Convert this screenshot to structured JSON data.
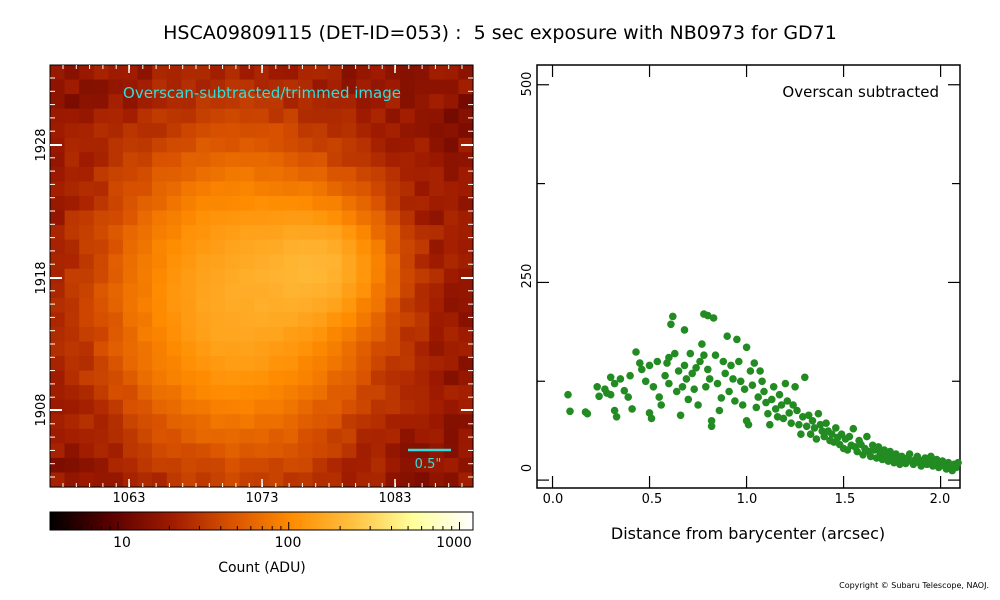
{
  "title": "HSCA09809115 (DET-ID=053) :  5 sec exposure with NB0973 for GD71",
  "copyright": "Copyright © Subaru Telescope, NAOJ.",
  "image_panel": {
    "label": "Overscan-subtracted/trimmed image",
    "scale_bar_label": "0.5\"",
    "x_ticks": [
      "1063",
      "1073",
      "1083"
    ],
    "y_ticks": [
      "1928",
      "1918",
      "1908"
    ],
    "colorbar_ticks": [
      "10",
      "100",
      "1000"
    ],
    "colorbar_label": "Count (ADU)",
    "colorbar_scale": "log",
    "colorbar_range": [
      4,
      1200
    ],
    "colormap": [
      "#000000",
      "#5a0000",
      "#9e1a00",
      "#d85200",
      "#ff8c00",
      "#ffc040",
      "#ffff9a",
      "#ffffff"
    ],
    "label_color": "#33dddd"
  },
  "chart_data": {
    "type": "scatter",
    "label": "Overscan subtracted",
    "xlabel": "Distance from barycenter (arcsec)",
    "ylabel": "",
    "xlim": [
      -0.08,
      2.1
    ],
    "ylim": [
      -10,
      525
    ],
    "x_ticks": [
      "0.0",
      "0.5",
      "1.0",
      "1.5",
      "2.0"
    ],
    "y_ticks": [
      "0",
      "250",
      "500"
    ],
    "marker_color": "#228b22",
    "points": [
      [
        0.08,
        108
      ],
      [
        0.09,
        87
      ],
      [
        0.17,
        86
      ],
      [
        0.18,
        84
      ],
      [
        0.23,
        118
      ],
      [
        0.24,
        106
      ],
      [
        0.27,
        115
      ],
      [
        0.28,
        110
      ],
      [
        0.3,
        108
      ],
      [
        0.3,
        130
      ],
      [
        0.32,
        122
      ],
      [
        0.32,
        88
      ],
      [
        0.33,
        80
      ],
      [
        0.35,
        128
      ],
      [
        0.37,
        113
      ],
      [
        0.39,
        105
      ],
      [
        0.4,
        132
      ],
      [
        0.41,
        90
      ],
      [
        0.43,
        162
      ],
      [
        0.45,
        148
      ],
      [
        0.46,
        140
      ],
      [
        0.48,
        125
      ],
      [
        0.5,
        145
      ],
      [
        0.5,
        85
      ],
      [
        0.51,
        78
      ],
      [
        0.52,
        118
      ],
      [
        0.54,
        150
      ],
      [
        0.55,
        105
      ],
      [
        0.56,
        95
      ],
      [
        0.58,
        132
      ],
      [
        0.59,
        148
      ],
      [
        0.6,
        155
      ],
      [
        0.6,
        122
      ],
      [
        0.61,
        197
      ],
      [
        0.62,
        207
      ],
      [
        0.63,
        160
      ],
      [
        0.64,
        112
      ],
      [
        0.65,
        138
      ],
      [
        0.66,
        82
      ],
      [
        0.67,
        118
      ],
      [
        0.68,
        190
      ],
      [
        0.68,
        145
      ],
      [
        0.69,
        128
      ],
      [
        0.7,
        102
      ],
      [
        0.71,
        160
      ],
      [
        0.72,
        135
      ],
      [
        0.73,
        115
      ],
      [
        0.74,
        142
      ],
      [
        0.75,
        95
      ],
      [
        0.76,
        150
      ],
      [
        0.77,
        172
      ],
      [
        0.78,
        210
      ],
      [
        0.78,
        158
      ],
      [
        0.79,
        118
      ],
      [
        0.8,
        208
      ],
      [
        0.8,
        140
      ],
      [
        0.81,
        128
      ],
      [
        0.82,
        75
      ],
      [
        0.82,
        68
      ],
      [
        0.83,
        205
      ],
      [
        0.84,
        158
      ],
      [
        0.85,
        122
      ],
      [
        0.86,
        88
      ],
      [
        0.87,
        104
      ],
      [
        0.88,
        150
      ],
      [
        0.89,
        135
      ],
      [
        0.9,
        182
      ],
      [
        0.91,
        112
      ],
      [
        0.92,
        145
      ],
      [
        0.93,
        128
      ],
      [
        0.94,
        100
      ],
      [
        0.95,
        178
      ],
      [
        0.96,
        150
      ],
      [
        0.97,
        125
      ],
      [
        0.98,
        95
      ],
      [
        0.99,
        115
      ],
      [
        1.0,
        168
      ],
      [
        1.0,
        75
      ],
      [
        1.01,
        70
      ],
      [
        1.02,
        138
      ],
      [
        1.03,
        120
      ],
      [
        1.04,
        148
      ],
      [
        1.05,
        92
      ],
      [
        1.06,
        105
      ],
      [
        1.07,
        138
      ],
      [
        1.08,
        125
      ],
      [
        1.09,
        112
      ],
      [
        1.1,
        98
      ],
      [
        1.11,
        84
      ],
      [
        1.12,
        70
      ],
      [
        1.13,
        102
      ],
      [
        1.14,
        118
      ],
      [
        1.15,
        90
      ],
      [
        1.16,
        80
      ],
      [
        1.17,
        108
      ],
      [
        1.18,
        95
      ],
      [
        1.19,
        78
      ],
      [
        1.2,
        122
      ],
      [
        1.21,
        100
      ],
      [
        1.22,
        85
      ],
      [
        1.23,
        72
      ],
      [
        1.24,
        95
      ],
      [
        1.25,
        118
      ],
      [
        1.26,
        88
      ],
      [
        1.27,
        70
      ],
      [
        1.28,
        58
      ],
      [
        1.29,
        80
      ],
      [
        1.3,
        130
      ],
      [
        1.31,
        68
      ],
      [
        1.32,
        82
      ],
      [
        1.33,
        58
      ],
      [
        1.34,
        75
      ],
      [
        1.35,
        66
      ],
      [
        1.36,
        52
      ],
      [
        1.37,
        84
      ],
      [
        1.38,
        70
      ],
      [
        1.39,
        62
      ],
      [
        1.4,
        55
      ],
      [
        1.41,
        72
      ],
      [
        1.42,
        62
      ],
      [
        1.43,
        50
      ],
      [
        1.44,
        58
      ],
      [
        1.45,
        48
      ],
      [
        1.46,
        66
      ],
      [
        1.47,
        54
      ],
      [
        1.48,
        45
      ],
      [
        1.49,
        58
      ],
      [
        1.5,
        40
      ],
      [
        1.51,
        52
      ],
      [
        1.52,
        38
      ],
      [
        1.53,
        55
      ],
      [
        1.54,
        44
      ],
      [
        1.55,
        65
      ],
      [
        1.56,
        42
      ],
      [
        1.57,
        36
      ],
      [
        1.58,
        50
      ],
      [
        1.59,
        45
      ],
      [
        1.6,
        32
      ],
      [
        1.61,
        40
      ],
      [
        1.62,
        55
      ],
      [
        1.63,
        36
      ],
      [
        1.64,
        30
      ],
      [
        1.65,
        44
      ],
      [
        1.66,
        38
      ],
      [
        1.67,
        28
      ],
      [
        1.68,
        42
      ],
      [
        1.69,
        34
      ],
      [
        1.7,
        26
      ],
      [
        1.71,
        38
      ],
      [
        1.72,
        30
      ],
      [
        1.73,
        24
      ],
      [
        1.74,
        36
      ],
      [
        1.75,
        28
      ],
      [
        1.76,
        22
      ],
      [
        1.77,
        33
      ],
      [
        1.78,
        27
      ],
      [
        1.79,
        20
      ],
      [
        1.8,
        30
      ],
      [
        1.81,
        25
      ],
      [
        1.82,
        21
      ],
      [
        1.83,
        28
      ],
      [
        1.84,
        33
      ],
      [
        1.85,
        24
      ],
      [
        1.86,
        20
      ],
      [
        1.87,
        26
      ],
      [
        1.88,
        30
      ],
      [
        1.89,
        22
      ],
      [
        1.9,
        18
      ],
      [
        1.91,
        25
      ],
      [
        1.92,
        28
      ],
      [
        1.93,
        20
      ],
      [
        1.94,
        24
      ],
      [
        1.95,
        30
      ],
      [
        1.96,
        18
      ],
      [
        1.97,
        22
      ],
      [
        1.98,
        26
      ],
      [
        1.99,
        16
      ],
      [
        2.0,
        20
      ],
      [
        2.01,
        24
      ],
      [
        2.02,
        18
      ],
      [
        2.03,
        14
      ],
      [
        2.04,
        22
      ],
      [
        2.05,
        18
      ],
      [
        2.06,
        12
      ],
      [
        2.07,
        20
      ],
      [
        2.08,
        16
      ],
      [
        2.09,
        22
      ]
    ]
  }
}
